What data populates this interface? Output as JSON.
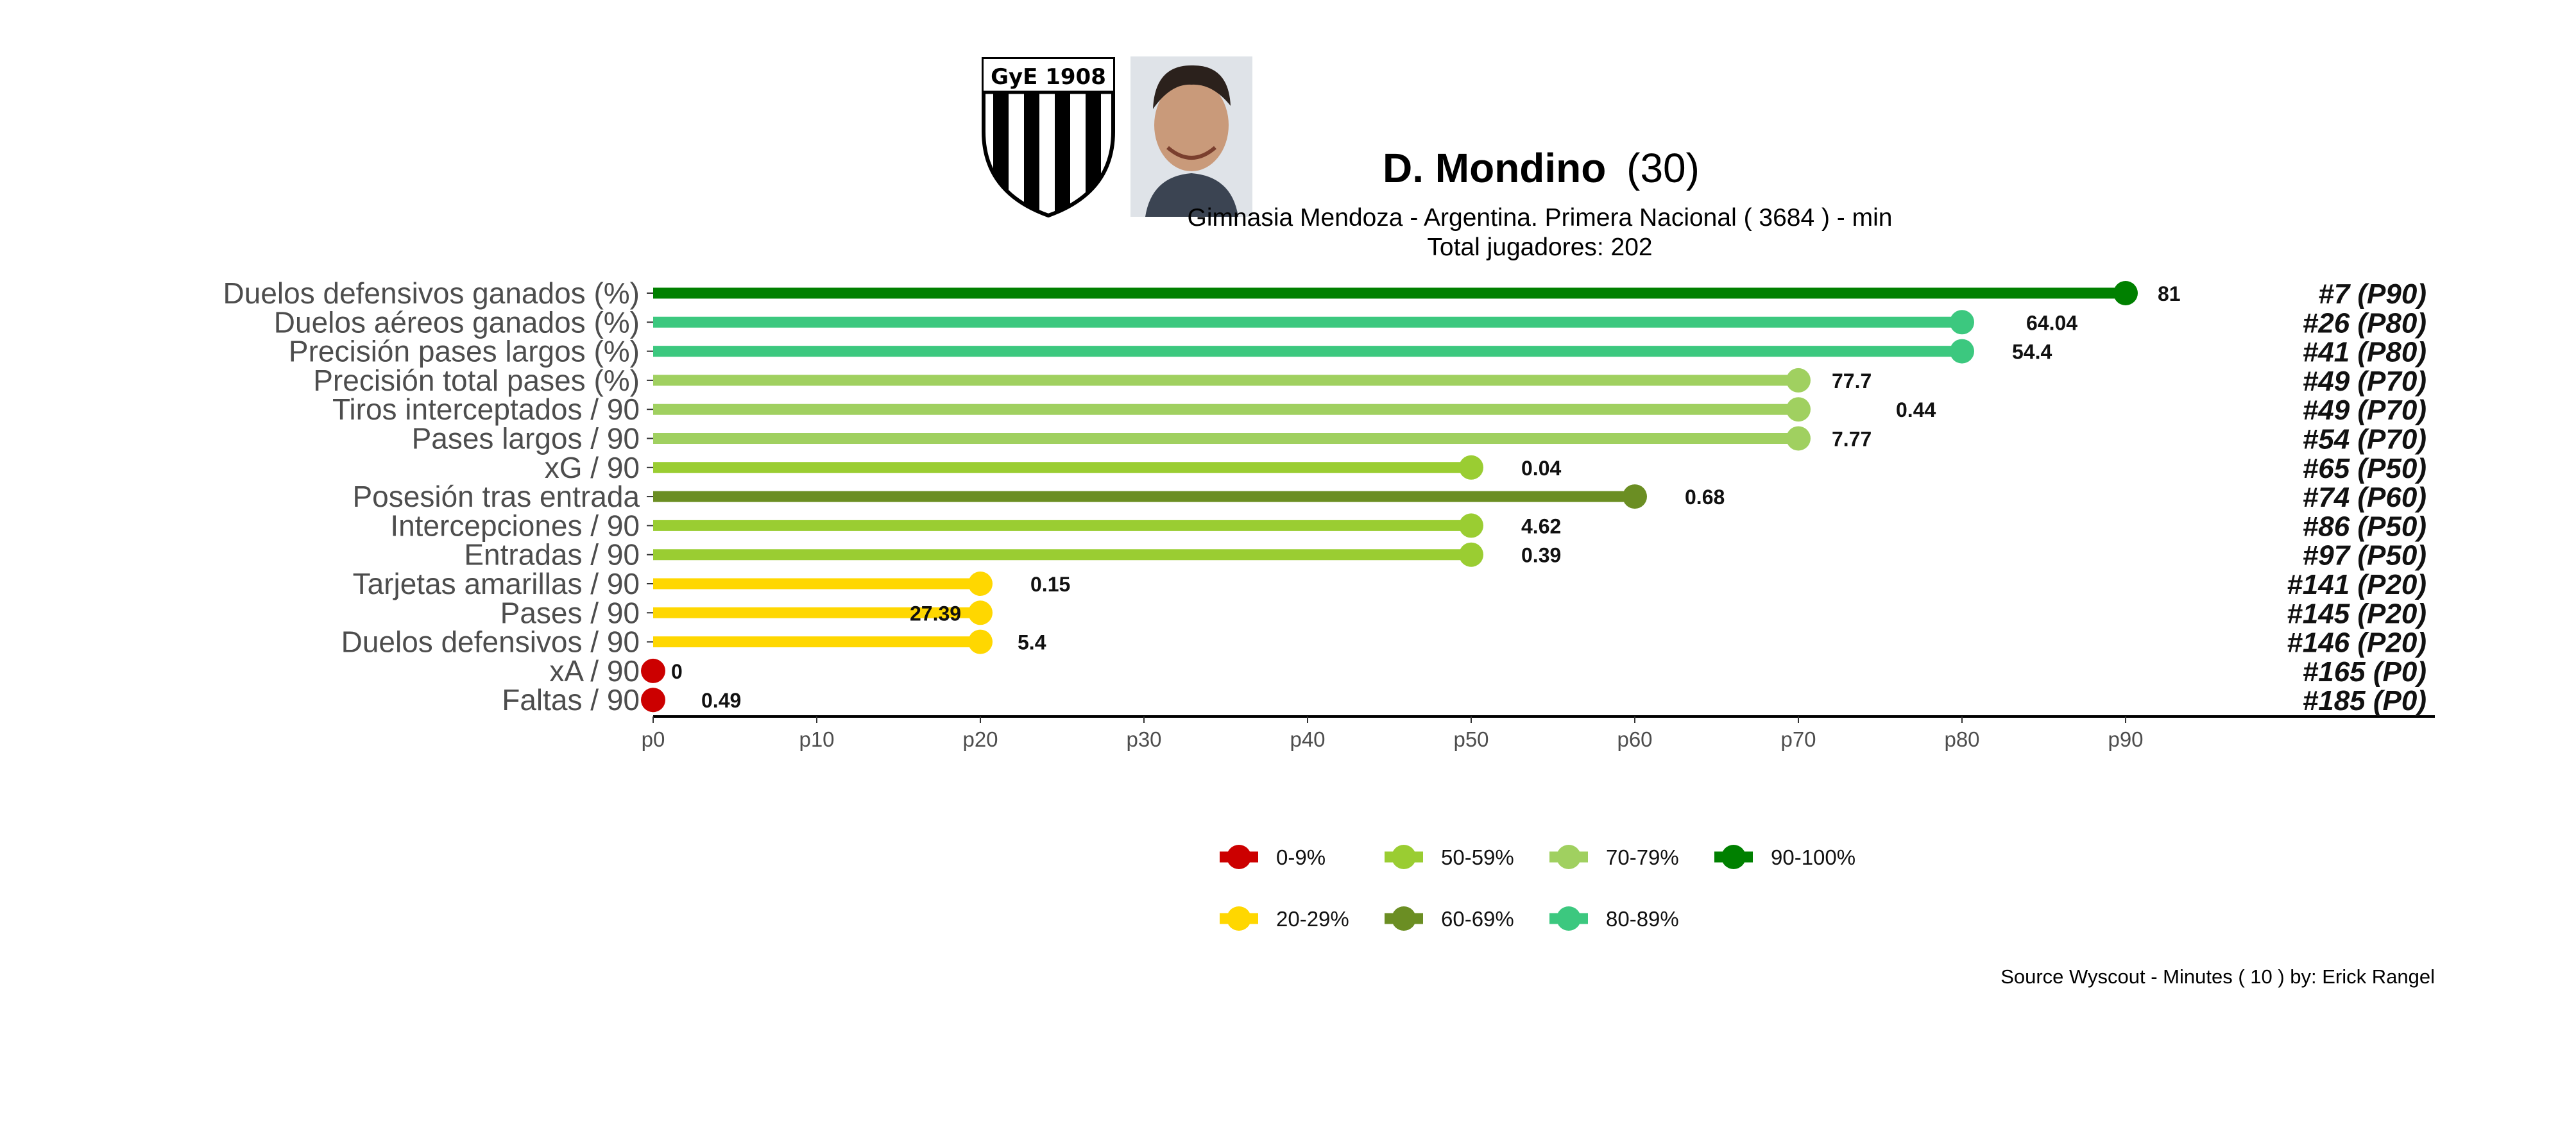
{
  "header": {
    "player_name": "D. Mondino",
    "player_age": "(30)",
    "subtitle": "Gimnasia Mendoza  -  Argentina. Primera Nacional  ( 3684 ) - min",
    "total_players": "Total jugadores:  202",
    "club_crest_text": "GyE 1908"
  },
  "caption": "Source Wyscout - Minutes ( 10 ) by: Erick Rangel",
  "chart_data": {
    "type": "lollipop",
    "x_ticks": [
      "p0",
      "p10",
      "p20",
      "p30",
      "p40",
      "p50",
      "p60",
      "p70",
      "p80",
      "p90"
    ],
    "xlim": [
      0,
      90
    ],
    "rows": [
      {
        "metric": "Duelos defensivos ganados (%)",
        "percentile": 90,
        "value": "81",
        "rank": "#7 (P90)",
        "band": "90-100%"
      },
      {
        "metric": "Duelos aéreos ganados (%)",
        "percentile": 80,
        "value": "64.04",
        "rank": "#26 (P80)",
        "band": "80-89%"
      },
      {
        "metric": "Precisión pases largos (%)",
        "percentile": 80,
        "value": "54.4",
        "rank": "#41 (P80)",
        "band": "80-89%"
      },
      {
        "metric": "Precisión total pases (%)",
        "percentile": 70,
        "value": "77.7",
        "rank": "#49 (P70)",
        "band": "70-79%"
      },
      {
        "metric": "Tiros interceptados / 90",
        "percentile": 70,
        "value": "0.44",
        "rank": "#49 (P70)",
        "band": "70-79%"
      },
      {
        "metric": "Pases largos / 90",
        "percentile": 70,
        "value": "7.77",
        "rank": "#54 (P70)",
        "band": "70-79%"
      },
      {
        "metric": "xG / 90",
        "percentile": 50,
        "value": "0.04",
        "rank": "#65 (P50)",
        "band": "50-59%"
      },
      {
        "metric": "Posesión tras entrada",
        "percentile": 60,
        "value": "0.68",
        "rank": "#74 (P60)",
        "band": "60-69%"
      },
      {
        "metric": "Intercepciones / 90",
        "percentile": 50,
        "value": "4.62",
        "rank": "#86 (P50)",
        "band": "50-59%"
      },
      {
        "metric": "Entradas / 90",
        "percentile": 50,
        "value": "0.39",
        "rank": "#97 (P50)",
        "band": "50-59%"
      },
      {
        "metric": "Tarjetas amarillas / 90",
        "percentile": 20,
        "value": "0.15",
        "rank": "#141 (P20)",
        "band": "20-29%"
      },
      {
        "metric": "Pases / 90",
        "percentile": 20,
        "value": "27.39",
        "rank": "#145 (P20)",
        "band": "20-29%"
      },
      {
        "metric": "Duelos defensivos / 90",
        "percentile": 20,
        "value": "5.4",
        "rank": "#146 (P20)",
        "band": "20-29%"
      },
      {
        "metric": "xA / 90",
        "percentile": 0,
        "value": "0",
        "rank": "#165 (P0)",
        "band": "0-9%"
      },
      {
        "metric": "Faltas / 90",
        "percentile": 0,
        "value": "0.49",
        "rank": "#185 (P0)",
        "band": "0-9%"
      }
    ],
    "legend": [
      {
        "label": "0-9%",
        "color": "#cc0000"
      },
      {
        "label": "50-59%",
        "color": "#9acd32"
      },
      {
        "label": "70-79%",
        "color": "#a0d060"
      },
      {
        "label": "90-100%",
        "color": "#008000"
      },
      {
        "label": "20-29%",
        "color": "#ffd700"
      },
      {
        "label": "60-69%",
        "color": "#6b8e23"
      },
      {
        "label": "80-89%",
        "color": "#3cc87f"
      }
    ],
    "band_colors": {
      "0-9%": "#cc0000",
      "20-29%": "#ffd700",
      "50-59%": "#9acd32",
      "60-69%": "#6b8e23",
      "70-79%": "#a0d060",
      "80-89%": "#3cc87f",
      "90-100%": "#008000"
    }
  }
}
